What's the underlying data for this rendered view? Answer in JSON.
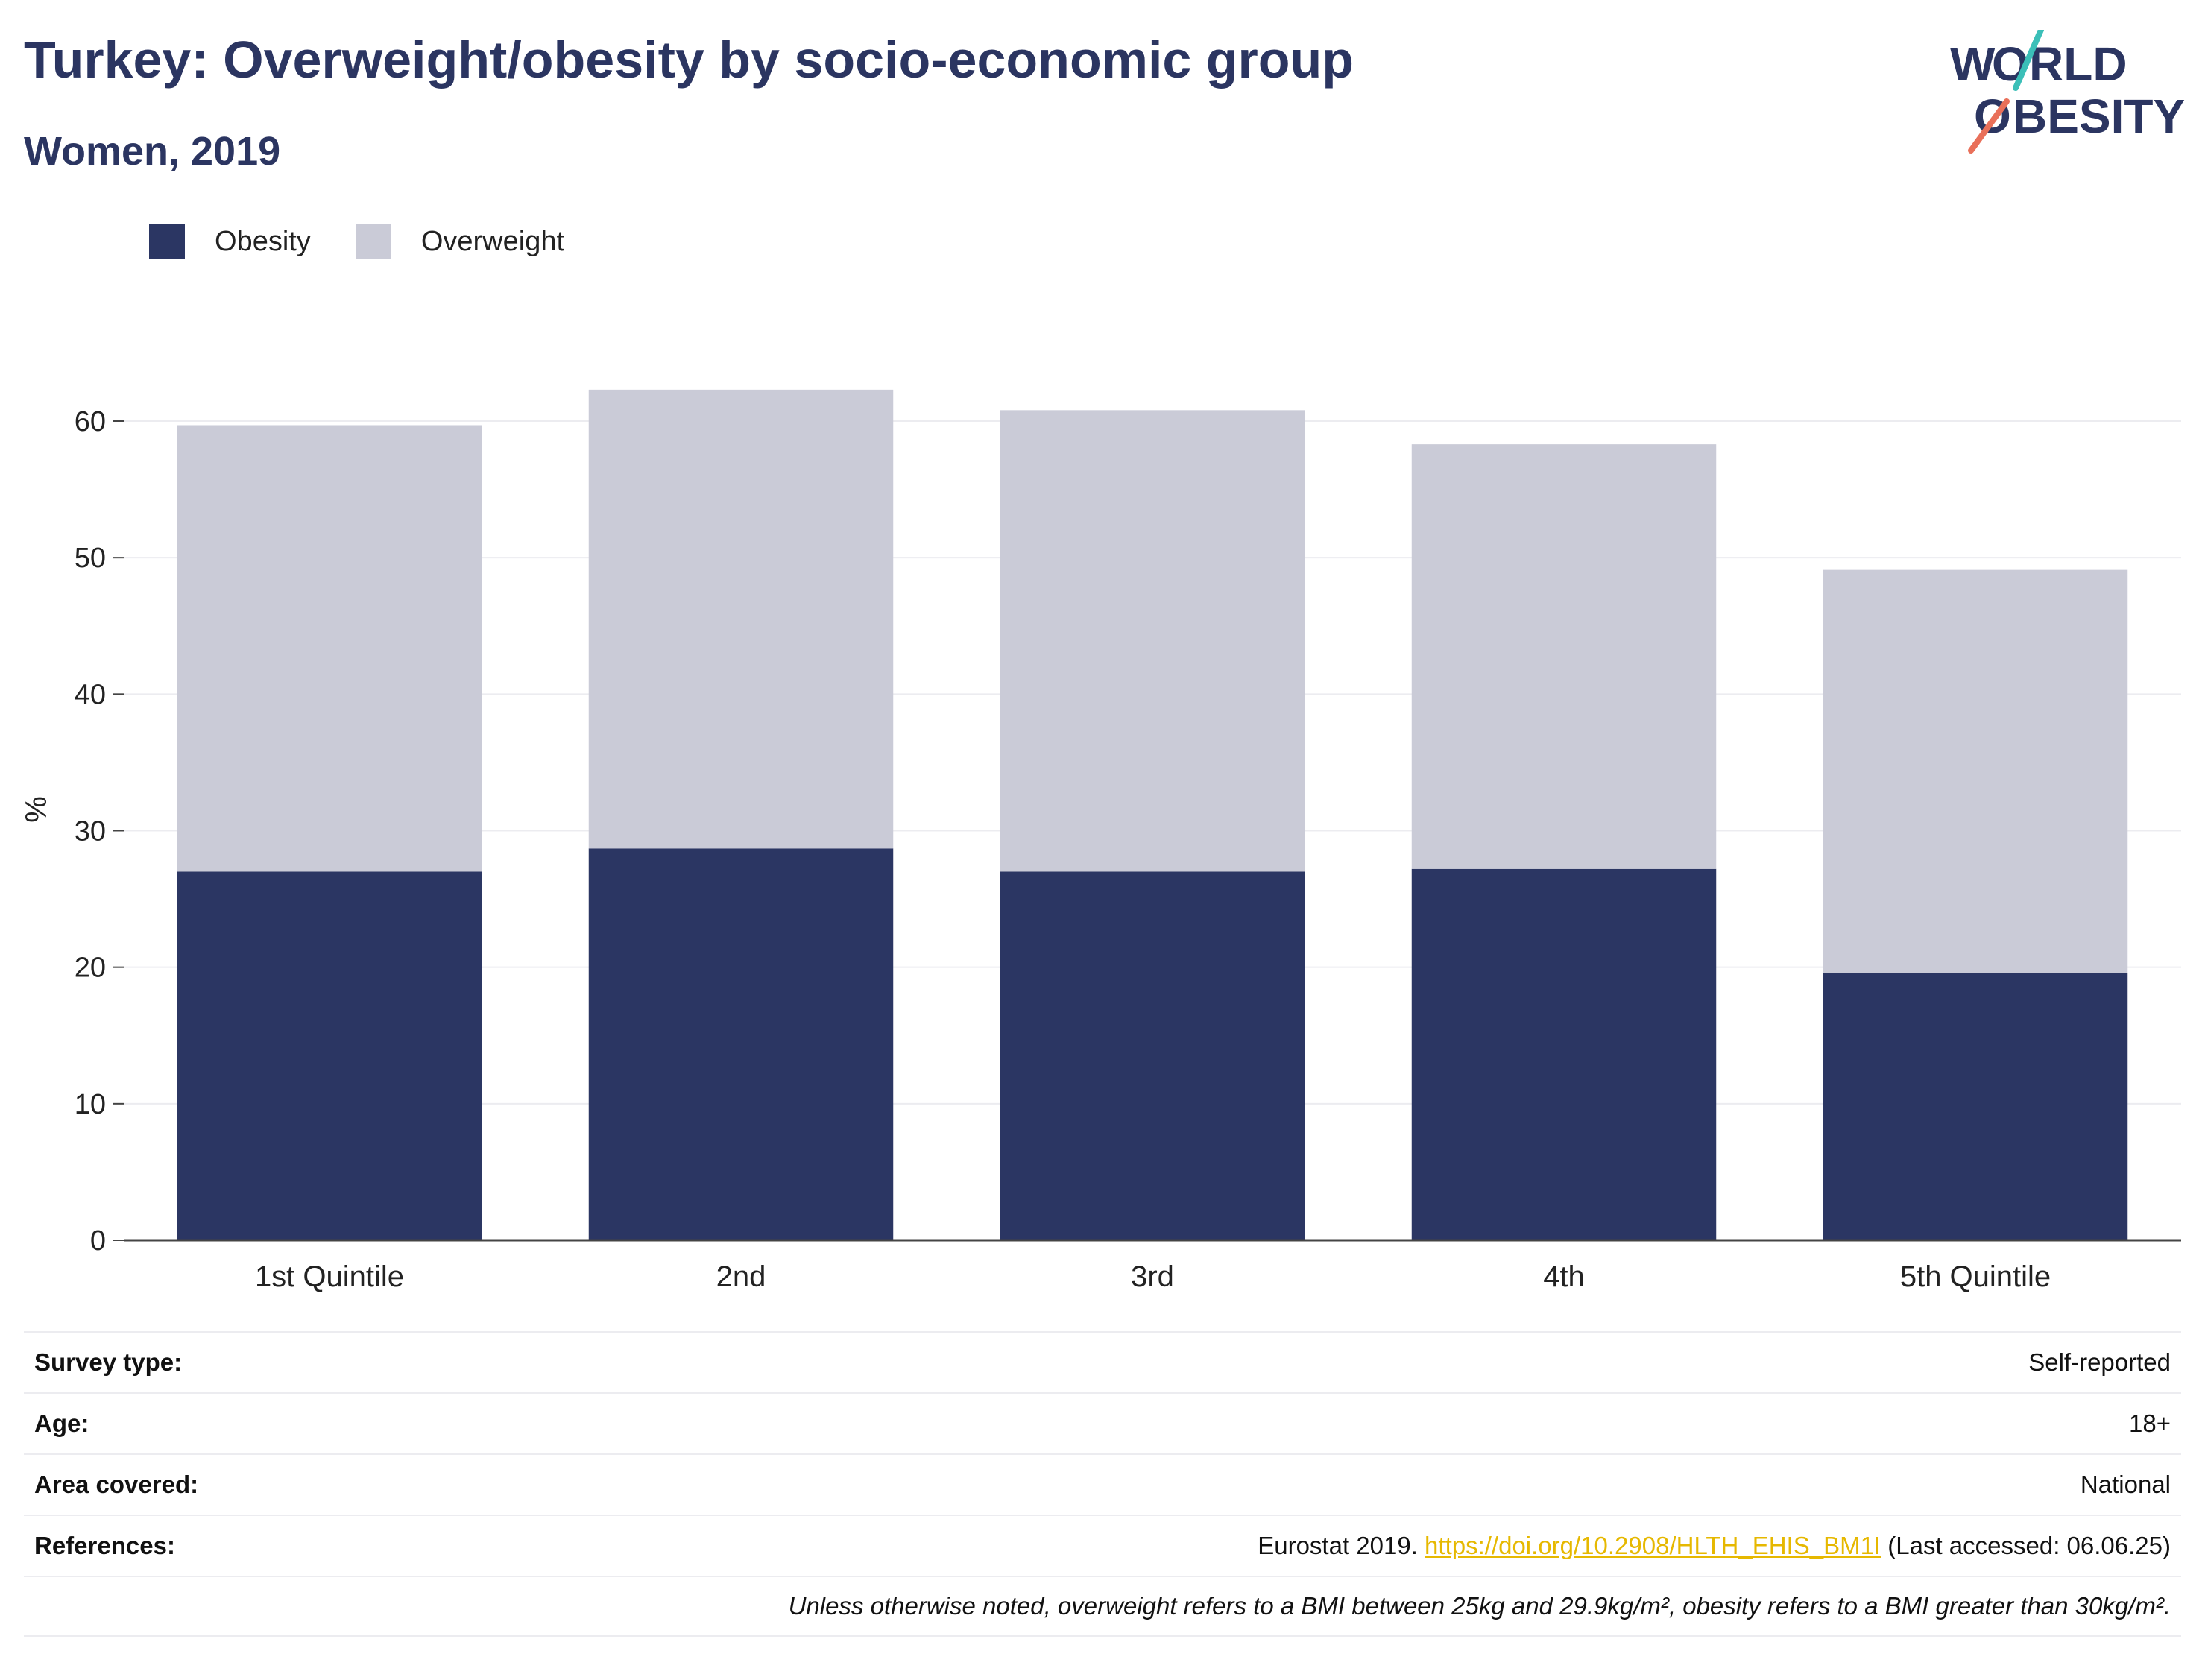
{
  "header": {
    "title": "Turkey: Overweight/obesity by socio-economic group",
    "subtitle": "Women, 2019"
  },
  "logo": {
    "line1": "WORLD",
    "line2": "OBESITY"
  },
  "colors": {
    "obesity": "#2b3663",
    "overweight": "#cacbd7",
    "text": "#2b3561",
    "link": "#e6b800"
  },
  "chart_data": {
    "type": "bar",
    "stacked": true,
    "categories": [
      "1st Quintile",
      "2nd",
      "3rd",
      "4th",
      "5th Quintile"
    ],
    "series": [
      {
        "name": "Obesity",
        "values": [
          27.0,
          28.7,
          27.0,
          27.2,
          19.6
        ]
      },
      {
        "name": "Overweight",
        "values": [
          32.7,
          33.6,
          33.8,
          31.1,
          29.5
        ]
      }
    ],
    "ylabel": "%",
    "ylim": [
      0,
      65
    ],
    "yticks": [
      0,
      10,
      20,
      30,
      40,
      50,
      60
    ],
    "grid": true,
    "legend_position": "top-left"
  },
  "info": {
    "survey_type_label": "Survey type:",
    "survey_type_value": "Self-reported",
    "age_label": "Age:",
    "age_value": "18+",
    "area_label": "Area covered:",
    "area_value": "National",
    "references_label": "References:",
    "references_prefix": "Eurostat 2019.",
    "references_link": "https://doi.org/10.2908/HLTH_EHIS_BM1I",
    "references_suffix": "(Last accessed: 06.06.25)",
    "note": "Unless otherwise noted, overweight refers to a BMI between 25kg and 29.9kg/m², obesity refers to a BMI greater than 30kg/m²."
  }
}
